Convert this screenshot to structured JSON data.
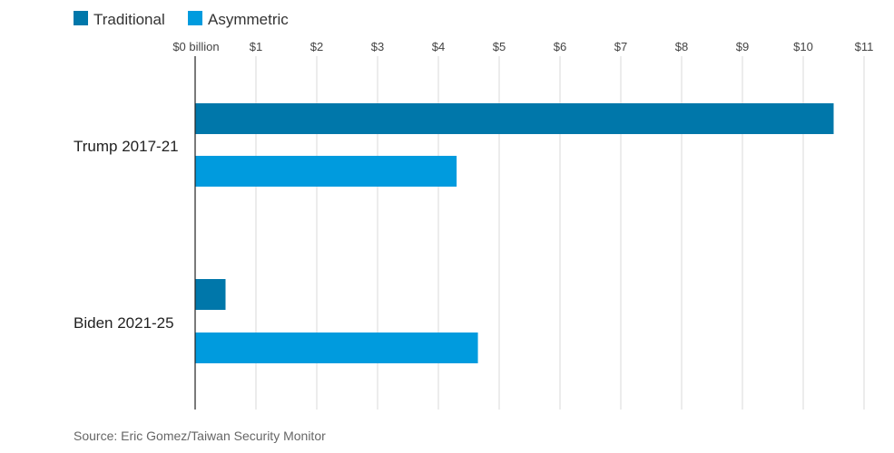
{
  "chart_data": {
    "type": "bar",
    "orientation": "horizontal",
    "categories": [
      "Trump 2017-21",
      "Biden 2021-25"
    ],
    "series": [
      {
        "name": "Traditional",
        "color": "#0077aa",
        "values": [
          10.5,
          0.5
        ]
      },
      {
        "name": "Asymmetric",
        "color": "#009bde",
        "values": [
          4.3,
          4.65
        ]
      }
    ],
    "x_ticks": [
      {
        "value": 0,
        "label": "$0 billion"
      },
      {
        "value": 1,
        "label": "$1"
      },
      {
        "value": 2,
        "label": "$2"
      },
      {
        "value": 3,
        "label": "$3"
      },
      {
        "value": 4,
        "label": "$4"
      },
      {
        "value": 5,
        "label": "$5"
      },
      {
        "value": 6,
        "label": "$6"
      },
      {
        "value": 7,
        "label": "$7"
      },
      {
        "value": 8,
        "label": "$8"
      },
      {
        "value": 9,
        "label": "$9"
      },
      {
        "value": 10,
        "label": "$10"
      },
      {
        "value": 11,
        "label": "$11"
      }
    ],
    "xlim": [
      0,
      11
    ],
    "grid": true,
    "legend_position": "top-left",
    "source": "Source: Eric Gomez/Taiwan Security Monitor"
  }
}
